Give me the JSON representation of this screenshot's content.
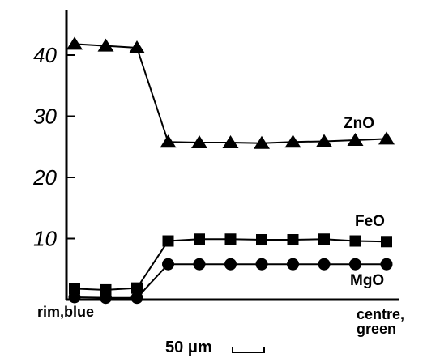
{
  "chart_data": {
    "type": "line",
    "x": [
      1,
      2,
      3,
      4,
      5,
      6,
      7,
      8,
      9,
      10,
      11
    ],
    "ylim": [
      0,
      45
    ],
    "yticks": [
      10,
      20,
      30,
      40
    ],
    "ytick_labels": [
      "10",
      "20",
      "30",
      "40"
    ],
    "x_start_label": "rim,blue",
    "x_end_label_line1": "centre,",
    "x_end_label_line2": "green",
    "scale_bar_label": "50 μm",
    "grid": false,
    "series": [
      {
        "name": "ZnO",
        "marker": "triangle",
        "values": [
          41.8,
          41.5,
          41.2,
          25.8,
          25.7,
          25.7,
          25.6,
          25.8,
          25.9,
          26.1,
          26.3
        ]
      },
      {
        "name": "FeO",
        "marker": "square",
        "values": [
          1.8,
          1.6,
          1.9,
          9.6,
          9.9,
          9.9,
          9.8,
          9.8,
          9.9,
          9.6,
          9.5
        ]
      },
      {
        "name": "MgO",
        "marker": "circle",
        "values": [
          0.4,
          0.3,
          0.3,
          5.8,
          5.8,
          5.8,
          5.8,
          5.8,
          5.8,
          5.8,
          5.8
        ]
      }
    ]
  }
}
